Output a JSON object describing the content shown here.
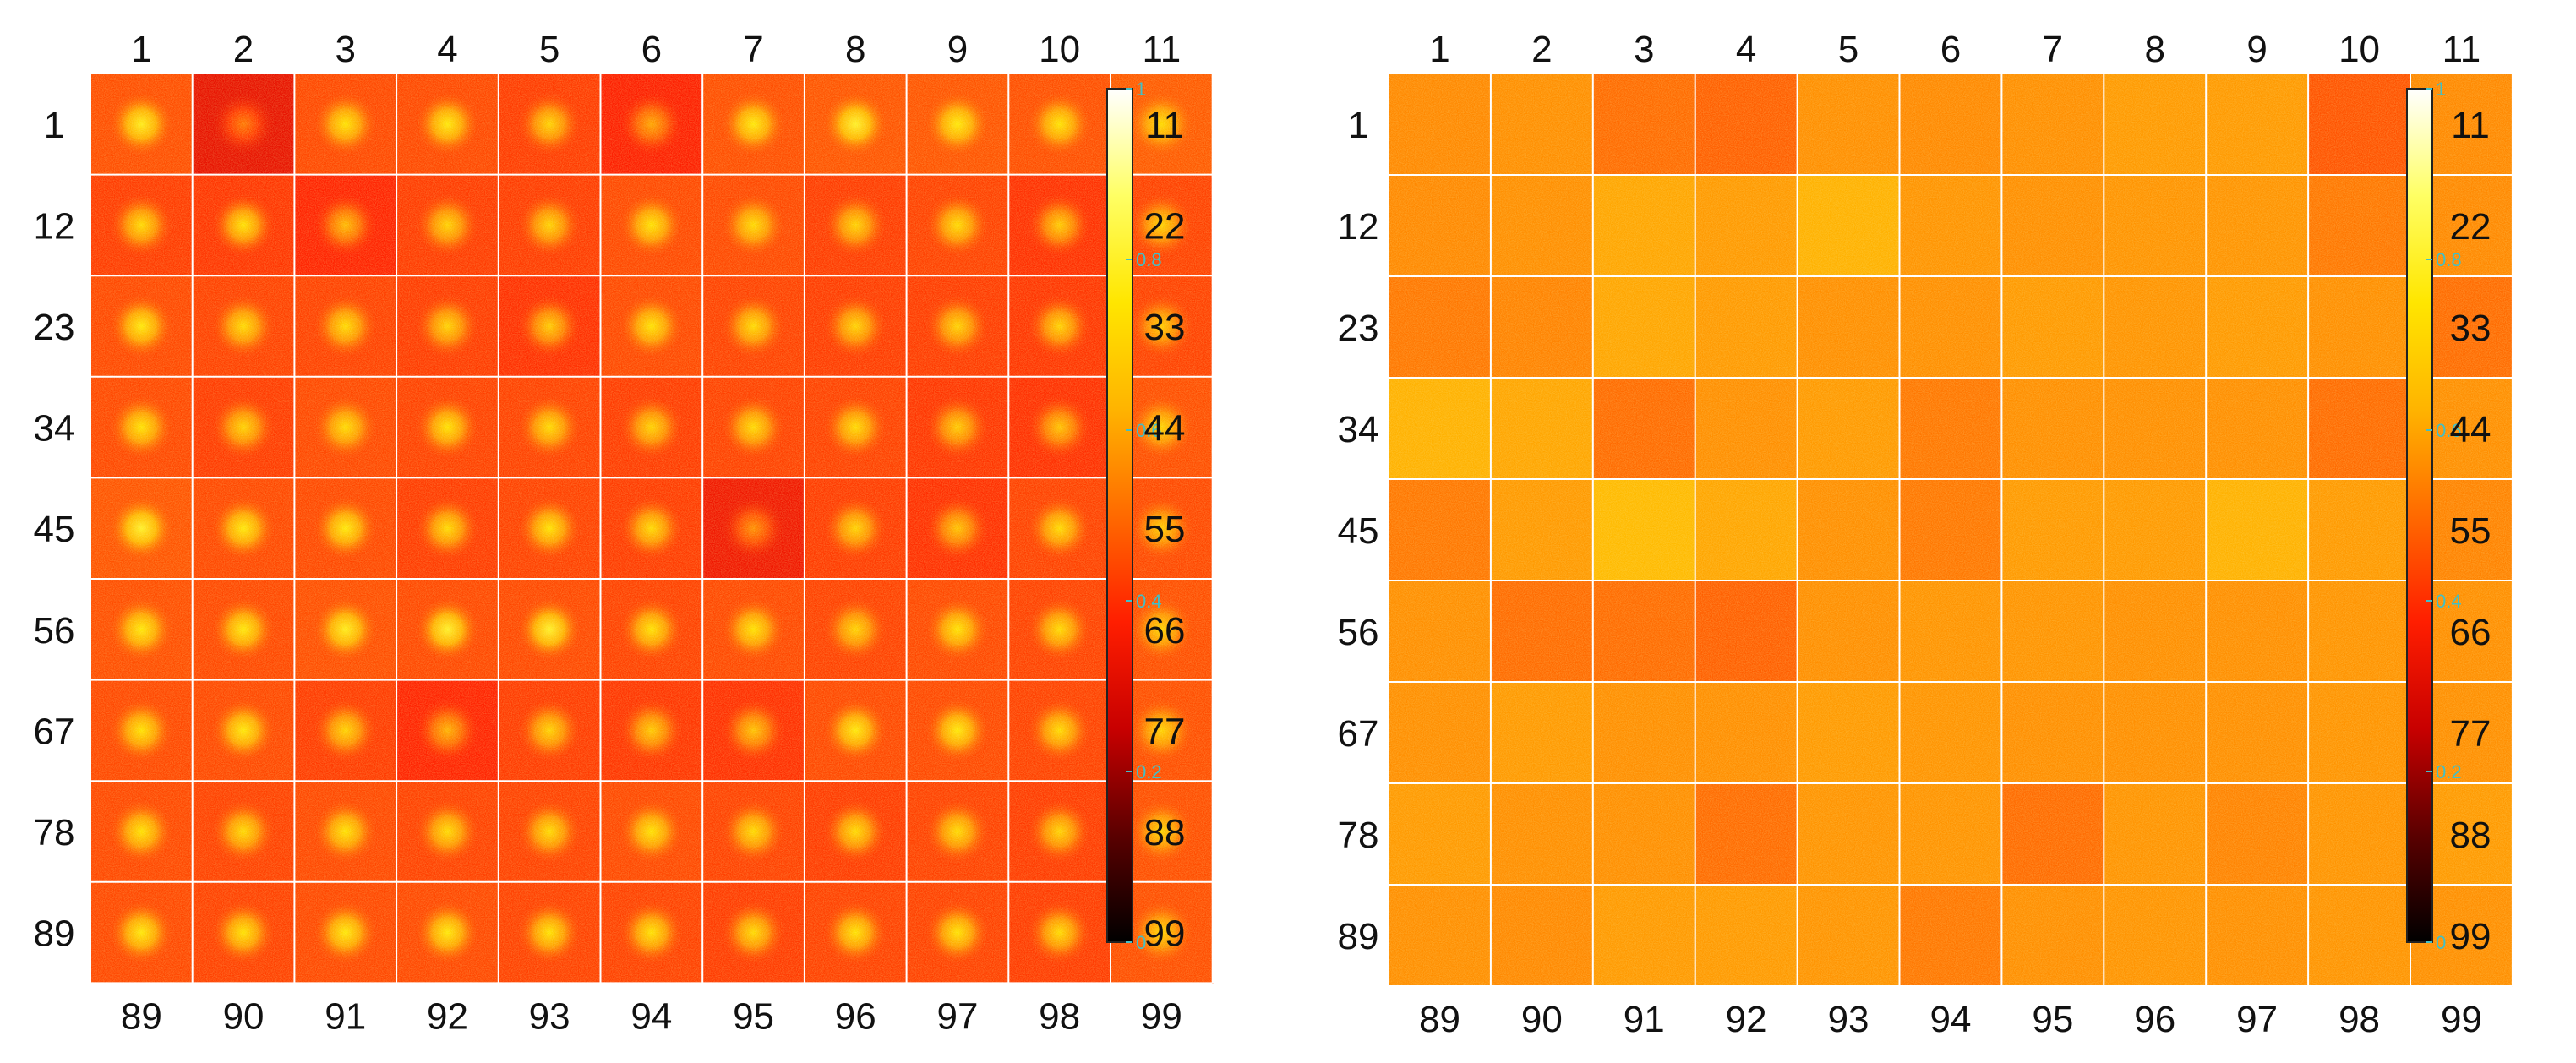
{
  "colors": {
    "colormap": [
      "#000000",
      "#5a0000",
      "#c80000",
      "#ff1e00",
      "#ff6a00",
      "#ffb400",
      "#ffe600",
      "#ffff64",
      "#ffffff"
    ],
    "gridline": "#ffffff",
    "colorbar_tick": "#40c0c8",
    "label": "#111111"
  },
  "chart_data": [
    {
      "type": "heatmap",
      "panel": "left",
      "rows": 9,
      "cols": 11,
      "column_labels_top": [
        "1",
        "2",
        "3",
        "4",
        "5",
        "6",
        "7",
        "8",
        "9",
        "10",
        "11"
      ],
      "column_labels_bottom": [
        "89",
        "90",
        "91",
        "92",
        "93",
        "94",
        "95",
        "96",
        "97",
        "98",
        "99"
      ],
      "row_labels_left": [
        "1",
        "12",
        "23",
        "34",
        "45",
        "56",
        "67",
        "78",
        "89"
      ],
      "row_labels_right": [
        "11",
        "22",
        "33",
        "44",
        "55",
        "66",
        "77",
        "88",
        "99"
      ],
      "cell_pattern": "central-spot",
      "cell_background": [
        [
          0.45,
          0.32,
          0.44,
          0.44,
          0.42,
          0.37,
          0.45,
          0.46,
          0.46,
          0.45,
          0.47
        ],
        [
          0.42,
          0.41,
          0.38,
          0.42,
          0.42,
          0.44,
          0.44,
          0.42,
          0.43,
          0.4,
          0.43
        ],
        [
          0.44,
          0.43,
          0.43,
          0.42,
          0.4,
          0.44,
          0.43,
          0.42,
          0.42,
          0.41,
          0.43
        ],
        [
          0.44,
          0.42,
          0.44,
          0.43,
          0.43,
          0.42,
          0.43,
          0.43,
          0.41,
          0.4,
          0.45
        ],
        [
          0.46,
          0.44,
          0.44,
          0.42,
          0.43,
          0.42,
          0.34,
          0.42,
          0.4,
          0.43,
          0.44
        ],
        [
          0.45,
          0.44,
          0.45,
          0.44,
          0.44,
          0.43,
          0.44,
          0.43,
          0.44,
          0.43,
          0.45
        ],
        [
          0.44,
          0.44,
          0.42,
          0.38,
          0.42,
          0.41,
          0.4,
          0.44,
          0.44,
          0.43,
          0.45
        ],
        [
          0.44,
          0.43,
          0.44,
          0.43,
          0.43,
          0.44,
          0.43,
          0.42,
          0.43,
          0.42,
          0.45
        ],
        [
          0.44,
          0.43,
          0.44,
          0.44,
          0.43,
          0.43,
          0.42,
          0.43,
          0.43,
          0.42,
          0.45
        ]
      ],
      "cell_peak": [
        [
          0.78,
          0.52,
          0.74,
          0.76,
          0.7,
          0.6,
          0.76,
          0.8,
          0.76,
          0.74,
          0.72
        ],
        [
          0.72,
          0.74,
          0.64,
          0.7,
          0.7,
          0.74,
          0.72,
          0.7,
          0.72,
          0.68,
          0.7
        ],
        [
          0.76,
          0.72,
          0.72,
          0.7,
          0.68,
          0.74,
          0.72,
          0.7,
          0.7,
          0.7,
          0.68
        ],
        [
          0.74,
          0.7,
          0.72,
          0.74,
          0.72,
          0.7,
          0.72,
          0.72,
          0.68,
          0.66,
          0.7
        ],
        [
          0.8,
          0.76,
          0.76,
          0.72,
          0.74,
          0.72,
          0.56,
          0.7,
          0.66,
          0.72,
          0.68
        ],
        [
          0.76,
          0.76,
          0.78,
          0.8,
          0.8,
          0.74,
          0.74,
          0.7,
          0.74,
          0.72,
          0.7
        ],
        [
          0.74,
          0.76,
          0.7,
          0.62,
          0.7,
          0.68,
          0.66,
          0.76,
          0.76,
          0.72,
          0.7
        ],
        [
          0.74,
          0.72,
          0.74,
          0.72,
          0.72,
          0.74,
          0.72,
          0.72,
          0.72,
          0.7,
          0.7
        ],
        [
          0.76,
          0.74,
          0.76,
          0.76,
          0.74,
          0.74,
          0.72,
          0.74,
          0.74,
          0.72,
          0.7
        ]
      ],
      "colorbar": {
        "min": 0,
        "max": 1,
        "ticks": [
          "0",
          "0.2",
          "0.4",
          "0.6",
          "0.8",
          "1"
        ]
      }
    },
    {
      "type": "heatmap",
      "panel": "right",
      "rows": 9,
      "cols": 11,
      "column_labels_top": [
        "1",
        "2",
        "3",
        "4",
        "5",
        "6",
        "7",
        "8",
        "9",
        "10",
        "11"
      ],
      "column_labels_bottom": [
        "89",
        "90",
        "91",
        "92",
        "93",
        "94",
        "95",
        "96",
        "97",
        "98",
        "99"
      ],
      "row_labels_left": [
        "1",
        "12",
        "23",
        "34",
        "45",
        "56",
        "67",
        "78",
        "89"
      ],
      "row_labels_right": [
        "11",
        "22",
        "33",
        "44",
        "55",
        "66",
        "77",
        "88",
        "99"
      ],
      "cell_pattern": "uniform",
      "cell_background": [
        [
          0.55,
          0.56,
          0.5,
          0.48,
          0.56,
          0.55,
          0.56,
          0.58,
          0.58,
          0.46,
          0.55
        ],
        [
          0.55,
          0.56,
          0.6,
          0.58,
          0.62,
          0.57,
          0.56,
          0.57,
          0.57,
          0.52,
          0.55
        ],
        [
          0.52,
          0.54,
          0.6,
          0.58,
          0.56,
          0.56,
          0.58,
          0.57,
          0.58,
          0.56,
          0.5
        ],
        [
          0.62,
          0.6,
          0.5,
          0.56,
          0.58,
          0.52,
          0.56,
          0.56,
          0.56,
          0.5,
          0.56
        ],
        [
          0.52,
          0.58,
          0.64,
          0.6,
          0.56,
          0.52,
          0.58,
          0.58,
          0.62,
          0.58,
          0.54
        ],
        [
          0.56,
          0.5,
          0.5,
          0.48,
          0.56,
          0.57,
          0.57,
          0.56,
          0.56,
          0.57,
          0.56
        ],
        [
          0.56,
          0.58,
          0.56,
          0.56,
          0.58,
          0.57,
          0.56,
          0.56,
          0.56,
          0.57,
          0.56
        ],
        [
          0.58,
          0.56,
          0.56,
          0.5,
          0.57,
          0.57,
          0.5,
          0.57,
          0.54,
          0.57,
          0.58
        ],
        [
          0.56,
          0.55,
          0.58,
          0.58,
          0.57,
          0.52,
          0.56,
          0.57,
          0.56,
          0.57,
          0.56
        ]
      ],
      "colorbar": {
        "min": 0,
        "max": 1,
        "ticks": [
          "0",
          "0.2",
          "0.4",
          "0.6",
          "0.8",
          "1"
        ]
      }
    }
  ]
}
